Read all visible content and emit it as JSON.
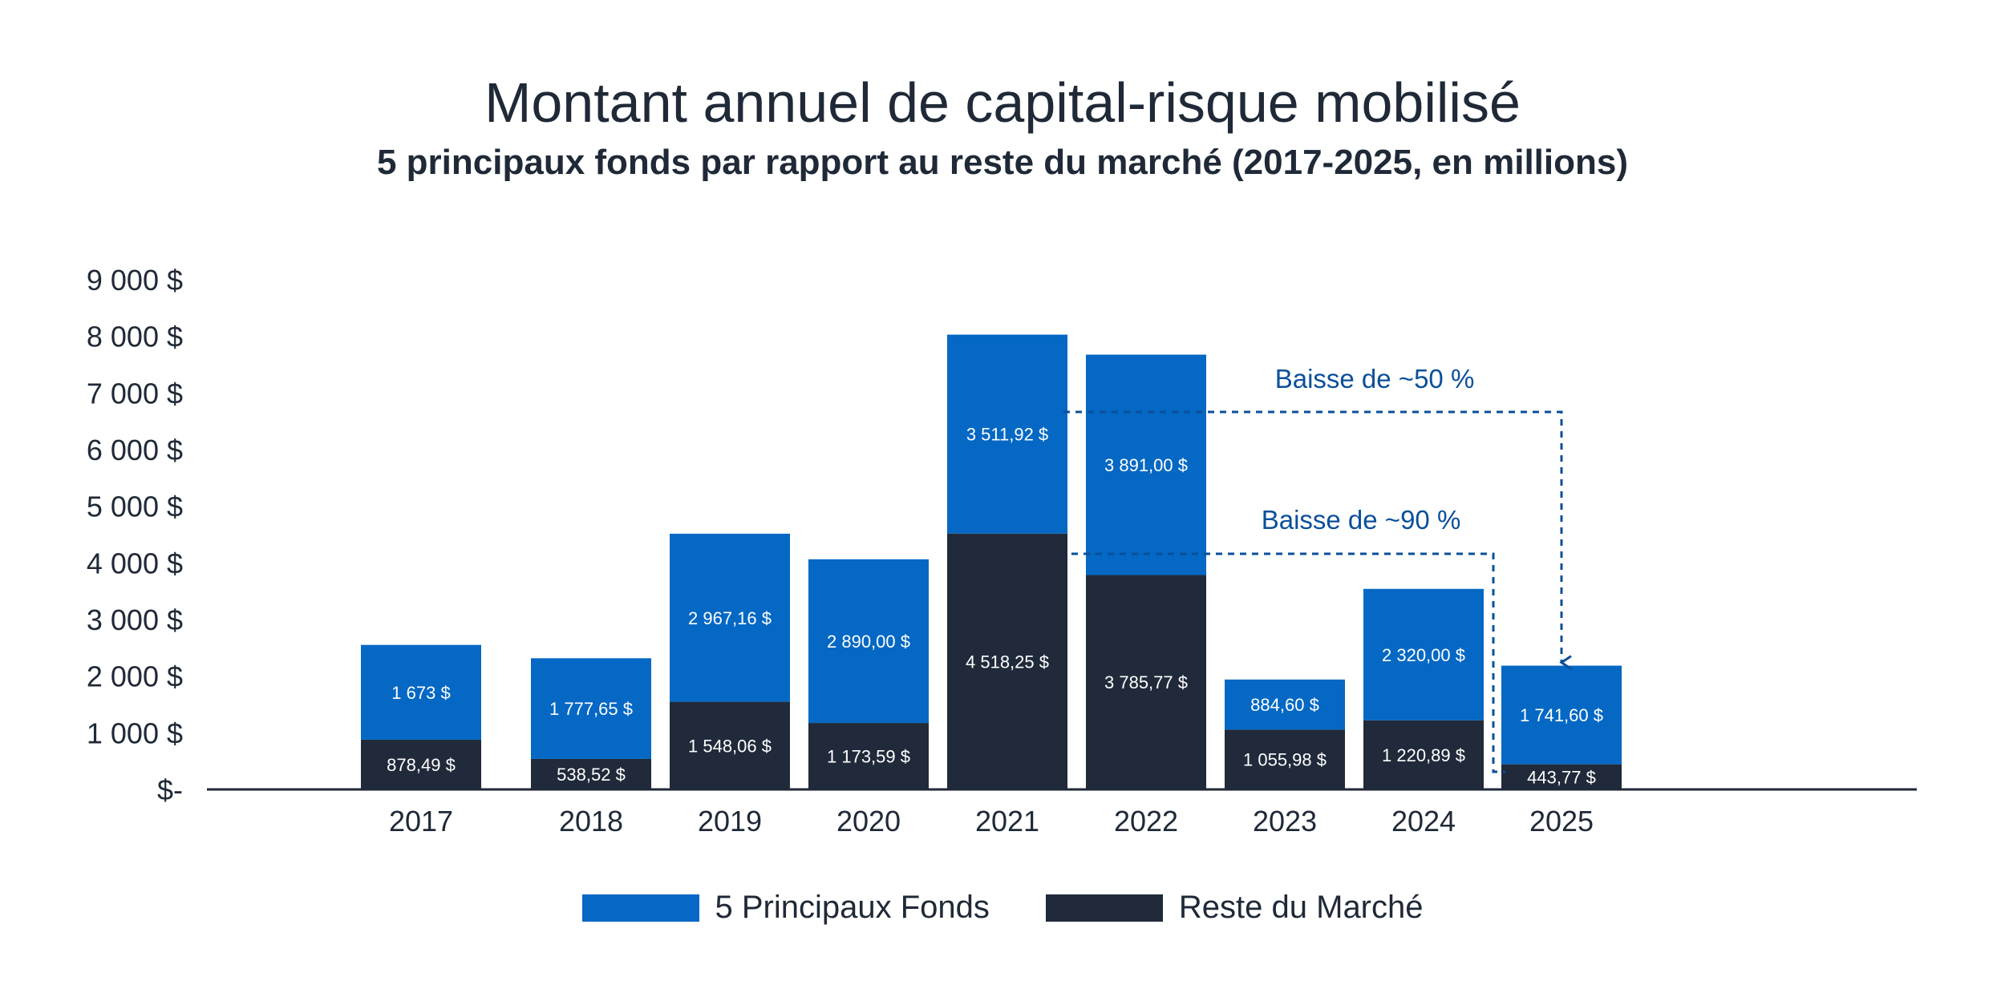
{
  "chart_data": {
    "type": "bar",
    "stacked": true,
    "title": "Montant annuel de capital-risque mobilisé",
    "subtitle": "5 principaux fonds par rapport au reste du marché (2017-2025, en millions)",
    "categories": [
      "2017",
      "2018",
      "2019",
      "2020",
      "2021",
      "2022",
      "2023",
      "2024",
      "2025"
    ],
    "series": [
      {
        "name": "Reste du Marché",
        "color": "#202a3a",
        "values": [
          878.49,
          538.52,
          1548.06,
          1173.59,
          4518.25,
          3785.77,
          1055.98,
          1220.89,
          443.77
        ],
        "labels": [
          "878,49 $",
          "538,52 $",
          "1 548,06 $",
          "1 173,59 $",
          "4 518,25 $",
          "3 785,77 $",
          "1 055,98 $",
          "1 220,89 $",
          "443,77 $"
        ]
      },
      {
        "name": "5 Principaux Fonds",
        "color": "#0468c4",
        "values": [
          1673,
          1777.65,
          2967.16,
          2890.0,
          3511.92,
          3891.0,
          884.6,
          2320.0,
          1741.6
        ],
        "labels": [
          "1 673 $",
          "1 777,65 $",
          "2 967,16 $",
          "2 890,00 $",
          "3 511,92 $",
          "3 891,00 $",
          "884,60 $",
          "2 320,00 $",
          "1 741,60 $"
        ]
      }
    ],
    "y_ticks": [
      0,
      1000,
      2000,
      3000,
      4000,
      5000,
      6000,
      7000,
      8000,
      9000
    ],
    "y_tick_labels": [
      "$-",
      "1 000 $",
      "2 000 $",
      "3 000 $",
      "4 000 $",
      "5 000 $",
      "6 000 $",
      "7 000 $",
      "8 000 $",
      "9 000 $"
    ],
    "ylim": [
      0,
      9000
    ],
    "grid": false,
    "legend_position": "bottom",
    "annotations": [
      {
        "text": "Baisse de ~50 %",
        "color": "#0b4f9a",
        "from_category": "2021",
        "from_value": 5500,
        "to_category": "2025",
        "to_value": 2185.37
      },
      {
        "text": "Baisse de ~90 %",
        "color": "#0b4f9a",
        "from_category": "2021",
        "from_value": 4000,
        "to_category": "2025",
        "to_value": 280
      }
    ]
  }
}
